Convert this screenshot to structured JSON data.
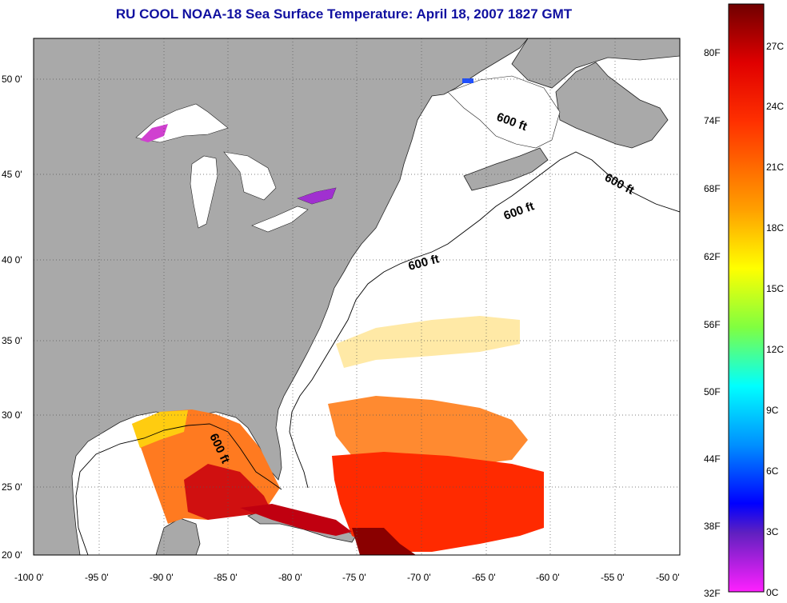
{
  "title": "RU COOL  NOAA-18  Sea Surface Temperature:  April 18, 2007 1827 GMT",
  "map": {
    "lon_ticks": [
      "-100 0'",
      "-95 0'",
      "-90 0'",
      "-85 0'",
      "-80 0'",
      "-75 0'",
      "-70 0'",
      "-65 0'",
      "-60 0'",
      "-55 0'",
      "-50 0'"
    ],
    "lat_ticks": [
      "50 0'",
      "45 0'",
      "40 0'",
      "35 0'",
      "30 0'",
      "25 0'",
      "20 0'"
    ],
    "contour_labels": [
      "600 ft",
      "600 ft",
      "600 ft",
      "600 ft",
      "600 ft"
    ],
    "colors": {
      "land": "#a9a9a9",
      "ocean_nodata": "#ffffff",
      "grid": "#555555"
    }
  },
  "colorbar": {
    "fahrenheit_labels": [
      "80F",
      "74F",
      "68F",
      "62F",
      "56F",
      "50F",
      "44F",
      "38F",
      "32F"
    ],
    "celsius_labels": [
      "27C",
      "24C",
      "21C",
      "18C",
      "15C",
      "12C",
      "9C",
      "6C",
      "3C",
      "0C"
    ],
    "color_stops": [
      "#7a0000",
      "#ff0000",
      "#ff8000",
      "#ffff00",
      "#80ff40",
      "#00ffff",
      "#0080ff",
      "#0000ff",
      "#2020a0",
      "#ff00ff"
    ]
  }
}
